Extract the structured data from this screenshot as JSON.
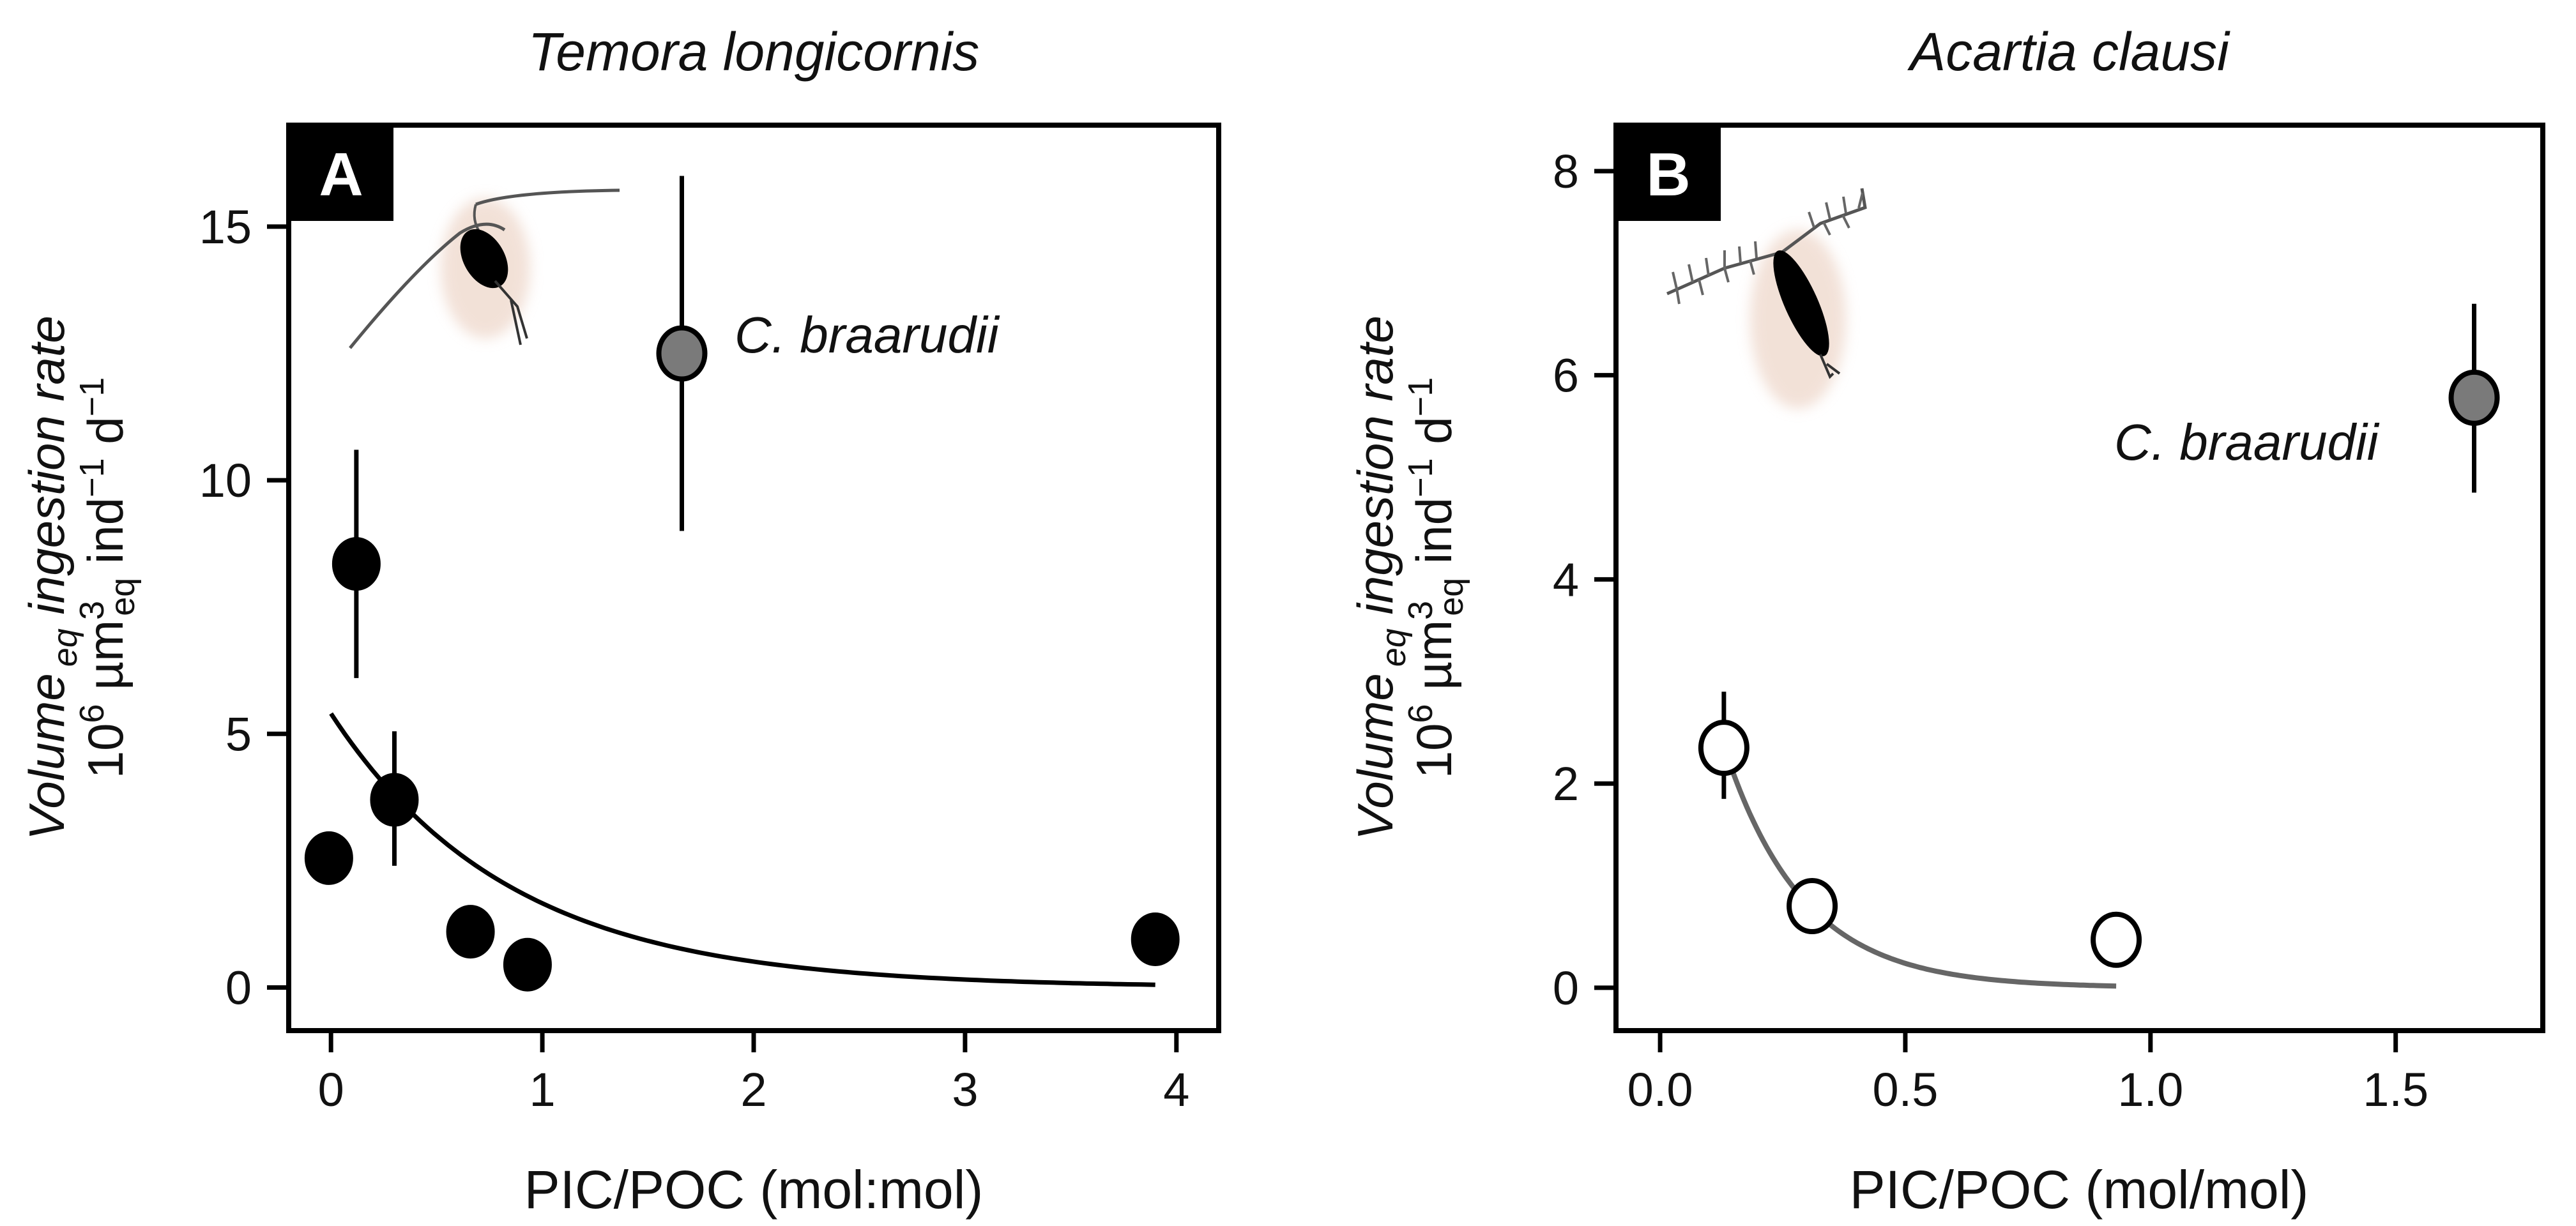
{
  "chart_data": [
    {
      "type": "scatter",
      "panel_label": "A",
      "title": "Temora longicornis",
      "xlabel": "PIC/POC (mol:mol)",
      "ylabel_line1": {
        "main": "Volume",
        "sub": "eq",
        "rest": " ingestion rate"
      },
      "ylabel_line2": {
        "a": "10",
        "b": "6",
        "c": " µm",
        "d": "3",
        "e": "eq",
        "f": " ind",
        "g": "−1",
        "h": " d",
        "i": "−1"
      },
      "xlim": [
        -0.2,
        4.2
      ],
      "ylim": [
        -0.85,
        17.0
      ],
      "xticks": [
        0,
        1,
        2,
        3,
        4
      ],
      "xtick_labels": [
        "0",
        "1",
        "2",
        "3",
        "4"
      ],
      "yticks": [
        0,
        5,
        10,
        15
      ],
      "ytick_labels": [
        "0",
        "5",
        "10",
        "15"
      ],
      "points": [
        {
          "x": -0.01,
          "y": 2.55,
          "err": null,
          "fill": "black"
        },
        {
          "x": 0.12,
          "y": 8.35,
          "err": [
            6.1,
            10.6
          ],
          "fill": "black"
        },
        {
          "x": 0.3,
          "y": 3.7,
          "err": [
            2.4,
            5.05
          ],
          "fill": "black"
        },
        {
          "x": 0.66,
          "y": 1.1,
          "err": null,
          "fill": "black"
        },
        {
          "x": 0.93,
          "y": 0.45,
          "err": null,
          "fill": "black"
        },
        {
          "x": 3.9,
          "y": 0.95,
          "err": null,
          "fill": "black"
        },
        {
          "x": 1.66,
          "y": 12.5,
          "err": [
            9.0,
            16.0
          ],
          "fill": "gray"
        }
      ],
      "fit": {
        "a": 5.4,
        "b": 1.18,
        "x_from": 0.0,
        "x_to": 3.9,
        "color": "#000000"
      },
      "annotation": {
        "text": "C. braarudii",
        "x": 1.9,
        "y": 12.6
      }
    },
    {
      "type": "scatter",
      "panel_label": "B",
      "title": "Acartia clausi",
      "xlabel": "PIC/POC (mol/mol)",
      "ylabel_line1": {
        "main": "Volume",
        "sub": "eq",
        "rest": " ingestion rate"
      },
      "ylabel_line2": {
        "a": "10",
        "b": "6",
        "c": " µm",
        "d": "3",
        "e": "eq",
        "f": " ind",
        "g": "−1",
        "h": " d",
        "i": "−1"
      },
      "xlim": [
        -0.09,
        1.8
      ],
      "ylim": [
        -0.42,
        8.45
      ],
      "xticks": [
        0.0,
        0.5,
        1.0,
        1.5
      ],
      "xtick_labels": [
        "0.0",
        "0.5",
        "1.0",
        "1.5"
      ],
      "yticks": [
        0,
        2,
        4,
        6,
        8
      ],
      "ytick_labels": [
        "0",
        "2",
        "4",
        "6",
        "8"
      ],
      "points": [
        {
          "x": 0.13,
          "y": 2.35,
          "err": [
            1.85,
            2.9
          ],
          "fill": "white"
        },
        {
          "x": 0.31,
          "y": 0.8,
          "err": null,
          "fill": "white"
        },
        {
          "x": 0.93,
          "y": 0.47,
          "err": null,
          "fill": "white"
        },
        {
          "x": 1.66,
          "y": 5.78,
          "err": [
            4.85,
            6.7
          ],
          "fill": "gray"
        }
      ],
      "fit": {
        "a": 5.3,
        "b": 6.2,
        "x_from": 0.13,
        "x_to": 0.93,
        "color": "#666666"
      },
      "annotation": {
        "text": "C. braarudii",
        "x": 0.93,
        "y": 5.35
      }
    }
  ]
}
